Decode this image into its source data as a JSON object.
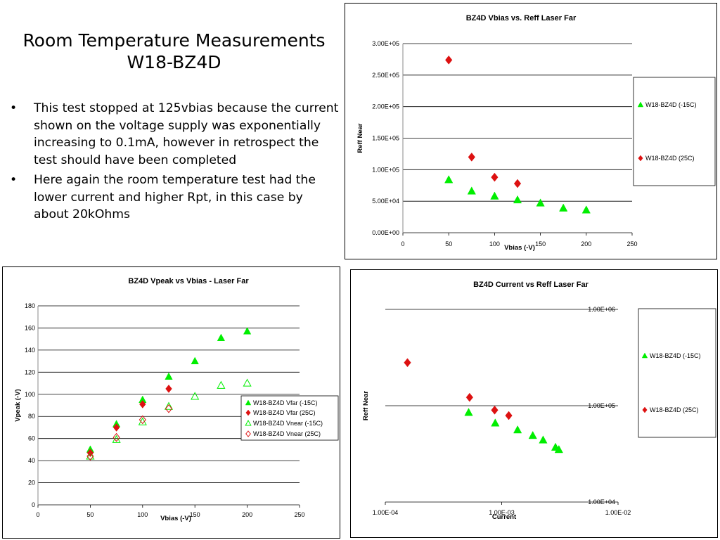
{
  "slide": {
    "title_line1": "Room Temperature Measurements",
    "title_line2": "W18-BZ4D",
    "bullets": [
      "This test stopped at 125vbias because the current shown on the voltage supply was exponentially increasing to 0.1mA, however in retrospect the test should have been completed",
      "Here again the room temperature test had the lower current and higher Rpt, in this case by about 20kOhms"
    ],
    "bullet_symbol": "•"
  },
  "colors": {
    "green": "#00ee00",
    "red": "#dd1111",
    "grid": "#000000"
  },
  "chart_data": [
    {
      "type": "scatter",
      "title": "BZ4D Vbias vs. Reff Laser Far",
      "xlabel": "Vbias (-V)",
      "ylabel": "Reff Near",
      "xlim": [
        0,
        250
      ],
      "ylim": [
        0,
        300000
      ],
      "x_ticks": [
        0,
        50,
        100,
        150,
        200,
        250
      ],
      "x_tick_labels": [
        "0",
        "50",
        "100",
        "150",
        "200",
        "250"
      ],
      "y_ticks": [
        0,
        50000,
        100000,
        150000,
        200000,
        250000,
        300000
      ],
      "y_tick_labels": [
        "0.00E+00",
        "5.00E+04",
        "1.00E+05",
        "1.50E+05",
        "2.00E+05",
        "2.50E+05",
        "3.00E+05"
      ],
      "grid": "horizontal",
      "legend_position": "right",
      "series": [
        {
          "name": "W18-BZ4D  (-15C)",
          "marker": "triangle",
          "color": "#00ee00",
          "points": [
            [
              50,
              84000
            ],
            [
              75,
              66000
            ],
            [
              100,
              58000
            ],
            [
              125,
              52000
            ],
            [
              150,
              47000
            ],
            [
              175,
              39000
            ],
            [
              200,
              36000
            ]
          ]
        },
        {
          "name": "W18-BZ4D (25C)",
          "marker": "diamond",
          "color": "#dd1111",
          "points": [
            [
              50,
              274000
            ],
            [
              75,
              120000
            ],
            [
              100,
              88000
            ],
            [
              125,
              78000
            ]
          ]
        }
      ]
    },
    {
      "type": "scatter",
      "title": "BZ4D Vpeak vs Vbias - Laser Far",
      "xlabel": "Vbias (-V)",
      "ylabel": "Vpeak (-V)",
      "xlim": [
        0,
        250
      ],
      "ylim": [
        0,
        180
      ],
      "x_ticks": [
        0,
        50,
        100,
        150,
        200,
        250
      ],
      "x_tick_labels": [
        "0",
        "50",
        "100",
        "150",
        "200",
        "250"
      ],
      "y_ticks": [
        0,
        20,
        40,
        60,
        80,
        100,
        120,
        140,
        160,
        180
      ],
      "y_tick_labels": [
        "0",
        "20",
        "40",
        "60",
        "80",
        "100",
        "120",
        "140",
        "160",
        "180"
      ],
      "grid": "horizontal",
      "legend_position": "right",
      "series": [
        {
          "name": "W18-BZ4D Vfar (-15C)",
          "marker": "triangle",
          "color": "#00ee00",
          "points": [
            [
              50,
              50
            ],
            [
              75,
              73
            ],
            [
              100,
              95
            ],
            [
              125,
              116
            ],
            [
              150,
              130
            ],
            [
              175,
              151
            ],
            [
              200,
              157
            ]
          ]
        },
        {
          "name": "W18-BZ4D Vfar (25C)",
          "marker": "diamond",
          "color": "#dd1111",
          "points": [
            [
              50,
              47
            ],
            [
              75,
              70
            ],
            [
              100,
              91
            ],
            [
              125,
              105
            ]
          ]
        },
        {
          "name": "W18-BZ4D Vnear (-15C)",
          "marker": "triangle-open",
          "color": "#00ee00",
          "points": [
            [
              50,
              44
            ],
            [
              75,
              59
            ],
            [
              100,
              75
            ],
            [
              125,
              89
            ],
            [
              150,
              98
            ],
            [
              175,
              108
            ],
            [
              200,
              110
            ]
          ]
        },
        {
          "name": "W18-BZ4D Vnear (25C)",
          "marker": "diamond-open",
          "color": "#dd1111",
          "points": [
            [
              50,
              44
            ],
            [
              75,
              61
            ],
            [
              100,
              77
            ],
            [
              125,
              87
            ]
          ]
        }
      ]
    },
    {
      "type": "scatter",
      "title": "BZ4D Current vs Reff Laser Far",
      "xlabel": "Current",
      "ylabel": "Reff Near",
      "xscale": "log",
      "yscale": "log",
      "xlim": [
        0.0001,
        0.01
      ],
      "ylim": [
        10000,
        1000000
      ],
      "x_ticks": [
        0.0001,
        0.001,
        0.01
      ],
      "x_tick_labels": [
        "1.00E-04",
        "1.00E-03",
        "1.00E-02"
      ],
      "y_ticks": [
        10000,
        100000,
        1000000
      ],
      "y_tick_labels": [
        "1.00E+04",
        "1.00E+05",
        "1.00E+06"
      ],
      "grid": "horizontal",
      "legend_position": "right",
      "series": [
        {
          "name": "W18-BZ4D  (-15C)",
          "marker": "triangle",
          "color": "#00ee00",
          "points": [
            [
              0.00052,
              85000
            ],
            [
              0.00088,
              66000
            ],
            [
              0.00137,
              56000
            ],
            [
              0.00185,
              49000
            ],
            [
              0.00227,
              44000
            ],
            [
              0.0029,
              37000
            ],
            [
              0.0031,
              35000
            ]
          ]
        },
        {
          "name": "W18-BZ4D (25C)",
          "marker": "diamond",
          "color": "#dd1111",
          "points": [
            [
              0.000155,
              280000
            ],
            [
              0.00053,
              122000
            ],
            [
              0.00087,
              90000
            ],
            [
              0.00115,
              79000
            ]
          ]
        }
      ]
    }
  ]
}
